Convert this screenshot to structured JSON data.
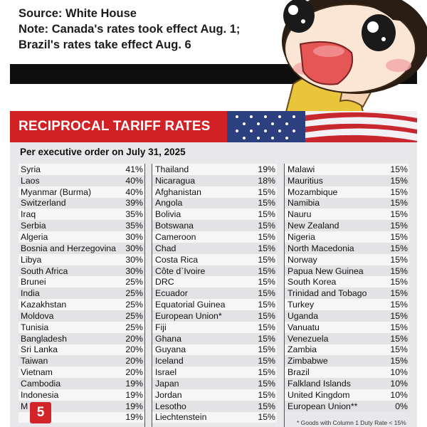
{
  "notes": {
    "line1": "Source: White House",
    "line2": "Note: Canada's rates took effect Aug. 1;",
    "line3": "Brazil's rates take effect Aug. 6"
  },
  "table": {
    "title": "RECIPROCAL TARIFF RATES",
    "subtitle": "Per executive order on July 31, 2025",
    "col1": [
      {
        "country": "Syria",
        "rate": "41%"
      },
      {
        "country": "Laos",
        "rate": "40%"
      },
      {
        "country": "Myanmar (Burma)",
        "rate": "40%"
      },
      {
        "country": "Switzerland",
        "rate": "39%"
      },
      {
        "country": "Iraq",
        "rate": "35%"
      },
      {
        "country": "Serbia",
        "rate": "35%"
      },
      {
        "country": "Algeria",
        "rate": "30%"
      },
      {
        "country": "Bosnia and Herzegovina",
        "rate": "30%"
      },
      {
        "country": "Libya",
        "rate": "30%"
      },
      {
        "country": "South Africa",
        "rate": "30%"
      },
      {
        "country": "Brunei",
        "rate": "25%"
      },
      {
        "country": "India",
        "rate": "25%"
      },
      {
        "country": "Kazakhstan",
        "rate": "25%"
      },
      {
        "country": "Moldova",
        "rate": "25%"
      },
      {
        "country": "Tunisia",
        "rate": "25%"
      },
      {
        "country": "Bangladesh",
        "rate": "20%"
      },
      {
        "country": "Sri Lanka",
        "rate": "20%"
      },
      {
        "country": "Taiwan",
        "rate": "20%"
      },
      {
        "country": "Vietnam",
        "rate": "20%"
      },
      {
        "country": "Cambodia",
        "rate": "19%"
      },
      {
        "country": "Indonesia",
        "rate": "19%"
      },
      {
        "country": "M",
        "rate": "19%"
      },
      {
        "country": "",
        "rate": "19%"
      }
    ],
    "col2": [
      {
        "country": "Thailand",
        "rate": "19%"
      },
      {
        "country": "Nicaragua",
        "rate": "18%"
      },
      {
        "country": "Afghanistan",
        "rate": "15%"
      },
      {
        "country": "Angola",
        "rate": "15%"
      },
      {
        "country": "Bolivia",
        "rate": "15%"
      },
      {
        "country": "Botswana",
        "rate": "15%"
      },
      {
        "country": "Cameroon",
        "rate": "15%"
      },
      {
        "country": "Chad",
        "rate": "15%"
      },
      {
        "country": "Costa Rica",
        "rate": "15%"
      },
      {
        "country": "Côte d`Ivoire",
        "rate": "15%"
      },
      {
        "country": "DRC",
        "rate": "15%"
      },
      {
        "country": "Ecuador",
        "rate": "15%"
      },
      {
        "country": "Equatorial Guinea",
        "rate": "15%"
      },
      {
        "country": "European Union*",
        "rate": "15%"
      },
      {
        "country": "Fiji",
        "rate": "15%"
      },
      {
        "country": "Ghana",
        "rate": "15%"
      },
      {
        "country": "Guyana",
        "rate": "15%"
      },
      {
        "country": "Iceland",
        "rate": "15%"
      },
      {
        "country": "Israel",
        "rate": "15%"
      },
      {
        "country": "Japan",
        "rate": "15%"
      },
      {
        "country": "Jordan",
        "rate": "15%"
      },
      {
        "country": "Lesotho",
        "rate": "15%"
      },
      {
        "country": "Liechtenstein",
        "rate": "15%"
      }
    ],
    "col3": [
      {
        "country": "Malawi",
        "rate": "15%"
      },
      {
        "country": "Mauritius",
        "rate": "15%"
      },
      {
        "country": "Mozambique",
        "rate": "15%"
      },
      {
        "country": "Namibia",
        "rate": "15%"
      },
      {
        "country": "Nauru",
        "rate": "15%"
      },
      {
        "country": "New Zealand",
        "rate": "15%"
      },
      {
        "country": "Nigeria",
        "rate": "15%"
      },
      {
        "country": "North Macedonia",
        "rate": "15%"
      },
      {
        "country": "Norway",
        "rate": "15%"
      },
      {
        "country": "Papua New Guinea",
        "rate": "15%"
      },
      {
        "country": "South Korea",
        "rate": "15%"
      },
      {
        "country": "Trinidad and Tobago",
        "rate": "15%"
      },
      {
        "country": "Turkey",
        "rate": "15%"
      },
      {
        "country": "Uganda",
        "rate": "15%"
      },
      {
        "country": "Vanuatu",
        "rate": "15%"
      },
      {
        "country": "Venezuela",
        "rate": "15%"
      },
      {
        "country": "Zambia",
        "rate": "15%"
      },
      {
        "country": "Zimbabwe",
        "rate": "15%"
      },
      {
        "country": "Brazil",
        "rate": "10%"
      },
      {
        "country": "Falkland Islands",
        "rate": "10%"
      },
      {
        "country": "United Kingdom",
        "rate": "10%"
      },
      {
        "country": "European Union**",
        "rate": "0%"
      }
    ],
    "footnote": "* Goods with Column 1 Duty Rate < 15%"
  },
  "badge": "5",
  "colors": {
    "accent_red": "#d22124",
    "panel_bg": "#e8e7ea",
    "bar_black": "#0e0e0e"
  }
}
